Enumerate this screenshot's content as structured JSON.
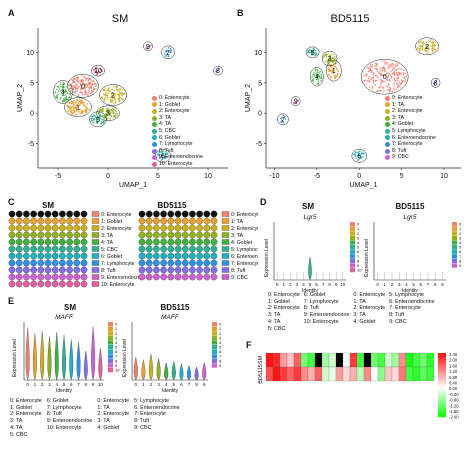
{
  "panels": {
    "A": {
      "label": "A",
      "title": "SM",
      "xlabel": "UMAP_1",
      "ylabel": "UMAP_2",
      "xticks": [
        "-5",
        "0",
        "5",
        "10"
      ],
      "yticks": [
        "10",
        "5",
        "0",
        "-5"
      ],
      "cluster_labels": [
        "0",
        "1",
        "2",
        "3",
        "4",
        "5",
        "6",
        "7",
        "8",
        "9",
        "10"
      ],
      "legend": [
        "0: Enterocyte",
        "1: Goblet",
        "2: Enterocyte",
        "3: TA",
        "4: TA",
        "5: CBC",
        "6: Goblet",
        "7: Lymphocyte",
        "8: Tuft",
        "9: Enteroendocrine",
        "10: Enterocyte"
      ]
    },
    "B": {
      "label": "B",
      "title": "BD5115",
      "xlabel": "UMAP_1",
      "ylabel": "UMAP_2",
      "xticks": [
        "-10",
        "-5",
        "0",
        "5",
        "10"
      ],
      "yticks": [
        "10",
        "5",
        "0",
        "-5"
      ],
      "cluster_labels": [
        "0",
        "1",
        "2",
        "3",
        "4",
        "5",
        "6",
        "7",
        "8",
        "9"
      ],
      "legend": [
        "0: Enterocyte",
        "1: TA",
        "2: Enterocyte",
        "3: TA",
        "4: Goblet",
        "5: Lymphocyte",
        "6: Enteroendocrine",
        "7: Enterocyte",
        "8: Tuft",
        "9: CBC"
      ]
    },
    "C": {
      "label": "C",
      "title_left": "SM",
      "title_right": "BD5115",
      "legend_left": [
        "0: Enterocyte",
        "1: Goblet",
        "2: Enterocyte",
        "3: TA",
        "4: TA",
        "5: CBC",
        "6: Goblet",
        "7: Lymphocyte",
        "8: Tuft",
        "9: Enteroendocrine",
        "10: Enterocyte"
      ],
      "legend_right": [
        "0: Enterocyte",
        "1: TA",
        "2: Enterocyte",
        "3: TA",
        "4: Goblet",
        "5: Lymphocyte",
        "6: Enteroendocrine",
        "7: Enterocyte",
        "8: Tuft",
        "9: CBC"
      ]
    },
    "D": {
      "label": "D",
      "title_left": "SM",
      "title_right": "BD5115",
      "gene_left": "Lgr5",
      "gene_right": "Lgr5",
      "ylabel": "Expression Level",
      "xlabel": "Identity",
      "ids_left": [
        "0: Enterocyte",
        "1: Goblet",
        "2: Enterocyte",
        "3: TA",
        "4: TA",
        "5: CBC",
        "6: Goblet",
        "7: Lymphocyte",
        "8: Tuft",
        "9: Enteroendocrine",
        "10: Enterocyte"
      ],
      "ids_right": [
        "0: Enterocyte",
        "1: TA",
        "2: Enterocyte",
        "3: TA",
        "4: Goblet",
        "5: Lymphocyte",
        "6: Enteroendocrine",
        "7: Enterocyte",
        "8: Tuft",
        "9: CBC"
      ]
    },
    "E": {
      "label": "E",
      "title_left": "SM",
      "title_right": "BD5115",
      "gene_left": "MAFF",
      "gene_right": "MAFF",
      "ylabel": "Expression Level",
      "xlabel": "Identity",
      "ids_left": [
        "0: Enterocyte",
        "1: Goblet",
        "2: Enterocyte",
        "3: TA",
        "4: TA",
        "5: CBC",
        "6: Goblet",
        "7: Lymphocyte",
        "8: Tuft",
        "9: Enteroendocrine",
        "10: Enterocyte"
      ],
      "ids_right": [
        "0: Enterocyte",
        "1: TA",
        "2: Enterocyte",
        "3: TA",
        "4: Goblet",
        "5: Lymphocyte",
        "6: Enteroendocrine",
        "7: Enterocyte",
        "8: Tuft",
        "9: CBC"
      ]
    },
    "F": {
      "label": "F",
      "rows": [
        "SM",
        "BD5115"
      ],
      "scale_ticks": [
        "2.40",
        "2.00",
        "1.60",
        "1.20",
        "0.80",
        "0.40",
        "0.00",
        "-0.40",
        "-0.80",
        "-1.20",
        "-1.60",
        "-2.00"
      ]
    }
  },
  "colors": {
    "clusters": [
      "#f08070",
      "#e8a030",
      "#c8b020",
      "#90b020",
      "#40b040",
      "#30b090",
      "#20b0c0",
      "#3090e0",
      "#8070e0",
      "#d060d0",
      "#e060a0"
    ]
  },
  "chart_data": [
    {
      "type": "scatter",
      "panel": "A",
      "title": "SM",
      "xlabel": "UMAP_1",
      "ylabel": "UMAP_2",
      "xlim": [
        -7,
        12
      ],
      "ylim": [
        -9,
        14
      ],
      "legend_placement": "right",
      "clusters": [
        {
          "name": "0: Enterocyte",
          "x": -2.5,
          "y": 4.5
        },
        {
          "name": "1: Goblet",
          "x": -3,
          "y": 1
        },
        {
          "name": "2: Enterocyte",
          "x": 0.5,
          "y": 3
        },
        {
          "name": "3: TA",
          "x": 0,
          "y": 0
        },
        {
          "name": "4: TA",
          "x": -4.5,
          "y": 3.5
        },
        {
          "name": "5: CBC",
          "x": -1,
          "y": -1
        },
        {
          "name": "6: Goblet",
          "x": 5.5,
          "y": -7
        },
        {
          "name": "7: Lymphocyte",
          "x": 6,
          "y": 10
        },
        {
          "name": "8: Tuft",
          "x": 11,
          "y": 7
        },
        {
          "name": "9: Enteroendocrine",
          "x": 4,
          "y": 11
        },
        {
          "name": "10: Enterocyte",
          "x": -1,
          "y": 7
        }
      ]
    },
    {
      "type": "scatter",
      "panel": "B",
      "title": "BD5115",
      "xlabel": "UMAP_1",
      "ylabel": "UMAP_2",
      "xlim": [
        -11,
        12
      ],
      "ylim": [
        -9,
        14
      ],
      "legend_placement": "right",
      "clusters": [
        {
          "name": "0: Enterocyte",
          "x": 3,
          "y": 6
        },
        {
          "name": "1: TA",
          "x": -3,
          "y": 7
        },
        {
          "name": "2: Enterocyte",
          "x": 8,
          "y": 11
        },
        {
          "name": "3: TA",
          "x": -3.5,
          "y": 9
        },
        {
          "name": "4: Goblet",
          "x": -5,
          "y": 6
        },
        {
          "name": "5: Lymphocyte",
          "x": -5.5,
          "y": 10
        },
        {
          "name": "6: Enteroendocrine",
          "x": 0,
          "y": -7
        },
        {
          "name": "7: Enterocyte",
          "x": -9,
          "y": -1
        },
        {
          "name": "8: Tuft",
          "x": 9,
          "y": 5
        },
        {
          "name": "9: CBC",
          "x": -7.5,
          "y": 2
        }
      ]
    },
    {
      "type": "violin",
      "panel": "D",
      "title": "SM",
      "gene": "Lgr5",
      "xlabel": "Identity",
      "ylabel": "Expression Level",
      "categories": [
        "0",
        "1",
        "2",
        "3",
        "4",
        "5",
        "6",
        "7",
        "8",
        "9",
        "10"
      ],
      "max_values": [
        0,
        0,
        0,
        0,
        0,
        0.4,
        0,
        0,
        0,
        0,
        0
      ]
    },
    {
      "type": "violin",
      "panel": "D",
      "title": "BD5115",
      "gene": "Lgr5",
      "xlabel": "Identity",
      "ylabel": "Expression Level",
      "categories": [
        "0",
        "1",
        "2",
        "3",
        "4",
        "5",
        "6",
        "7",
        "8",
        "9"
      ],
      "max_values": [
        0,
        0,
        0,
        0,
        0,
        0,
        0,
        0,
        0,
        0
      ]
    },
    {
      "type": "violin",
      "panel": "E",
      "title": "SM",
      "gene": "MAFF",
      "xlabel": "Identity",
      "ylabel": "Expression Level",
      "categories": [
        "0",
        "1",
        "2",
        "3",
        "4",
        "5",
        "6",
        "7",
        "8",
        "9",
        "10"
      ],
      "max_values": [
        3.6,
        3.2,
        3.4,
        3.0,
        3.3,
        3.1,
        2.8,
        2.6,
        2.0,
        3.7,
        2.2
      ]
    },
    {
      "type": "violin",
      "panel": "E",
      "title": "BD5115",
      "gene": "MAFF",
      "xlabel": "Identity",
      "ylabel": "Expression Level",
      "categories": [
        "0",
        "1",
        "2",
        "3",
        "4",
        "5",
        "6",
        "7",
        "8",
        "9"
      ],
      "max_values": [
        1.6,
        1.4,
        1.8,
        1.5,
        1.2,
        1.3,
        1.1,
        1.0,
        0.9,
        1.2
      ]
    },
    {
      "type": "heatmap",
      "panel": "F",
      "rows": [
        "SM",
        "BD5115"
      ],
      "value_range": [
        -2.0,
        2.4
      ],
      "values": [
        [
          2.4,
          2.2,
          1.0,
          0.6,
          1.6,
          -1.2,
          -1.6,
          2.4,
          -0.8,
          -0.4,
          2.4,
          0.0,
          2.0,
          -1.6,
          2.4,
          -1.2,
          -1.6,
          -0.4,
          -0.8,
          1.2,
          -2.0,
          -1.6,
          -1.2,
          -1.8
        ],
        [
          1.8,
          2.4,
          2.0,
          1.6,
          2.0,
          1.2,
          0.8,
          1.6,
          -0.4,
          -0.2,
          1.0,
          0.4,
          0.8,
          -0.6,
          1.2,
          0.0,
          -1.0,
          0.6,
          0.4,
          1.4,
          -1.6,
          -1.8,
          -1.4,
          -1.6
        ]
      ]
    }
  ]
}
